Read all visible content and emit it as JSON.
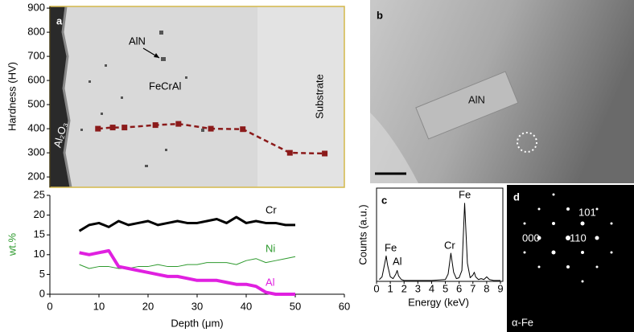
{
  "chart_data": [
    {
      "type": "line",
      "ylabel": "Hardness (HV)",
      "xlim": [
        0,
        60
      ],
      "ylim": [
        157,
        907
      ],
      "yticks": [
        200,
        300,
        400,
        500,
        600,
        700,
        800,
        900
      ],
      "annotations": [
        "a",
        "AlN",
        "FeCrAl",
        "Substrate",
        "Al₂O₃"
      ],
      "series": [
        {
          "color": "#8b1a1a",
          "marker": "square",
          "dashed": true,
          "x": [
            9.8,
            12.8,
            15.2,
            21.5,
            26.2,
            32.8,
            39.3,
            48.9,
            56
          ],
          "values": [
            400,
            405,
            405,
            415,
            420,
            400,
            398,
            300,
            297
          ]
        }
      ]
    },
    {
      "type": "line",
      "xlabel": "Depth (μm)",
      "ylabel": "wt.%",
      "xlim": [
        0,
        60
      ],
      "ylim": [
        0,
        25
      ],
      "xticks": [
        0,
        10,
        20,
        30,
        40,
        50,
        60
      ],
      "yticks": [
        0,
        5,
        10,
        15,
        20,
        25
      ],
      "x": [
        6,
        8,
        10,
        12,
        14,
        16,
        18,
        20,
        22,
        24,
        26,
        28,
        30,
        32,
        34,
        36,
        38,
        40,
        42,
        44,
        46,
        48,
        50
      ],
      "series": [
        {
          "name": "Cr",
          "color": "#000000",
          "width": 3,
          "values": [
            16,
            17.5,
            18,
            17,
            18.5,
            17.5,
            18,
            18.5,
            17.5,
            18,
            18.5,
            18,
            18,
            18.5,
            19,
            18,
            19.5,
            18,
            18.5,
            18,
            18,
            17.5,
            17.5
          ]
        },
        {
          "name": "Ni",
          "color": "#2e9a2e",
          "width": 1,
          "values": [
            7.5,
            6.5,
            7,
            7,
            6.5,
            6.5,
            7,
            7,
            7.5,
            7,
            7,
            7.5,
            7.5,
            8,
            8,
            8,
            7.5,
            8.5,
            9,
            8,
            8.5,
            9,
            9.5
          ]
        },
        {
          "name": "Al",
          "color": "#e020e0",
          "width": 4,
          "values": [
            10.5,
            10,
            10.5,
            11,
            7,
            6.5,
            6,
            5.5,
            5,
            4.5,
            4.5,
            4,
            3.5,
            3.5,
            3.5,
            3,
            2.5,
            2.5,
            2,
            0.5,
            0,
            0,
            0
          ]
        }
      ]
    },
    {
      "type": "line",
      "label": "c",
      "xlabel": "Energy (keV)",
      "ylabel": "Counts (a.u.)",
      "xlim": [
        0,
        9
      ],
      "ylim": [
        0,
        100
      ],
      "xticks": [
        0,
        1,
        2,
        3,
        4,
        5,
        6,
        7,
        8,
        9
      ],
      "peak_labels": [
        "Fe",
        "Al",
        "Cr",
        "Fe"
      ],
      "series": [
        {
          "color": "#000000",
          "width": 1,
          "x": [
            0.2,
            0.4,
            0.6,
            0.7,
            0.8,
            1.0,
            1.2,
            1.4,
            1.5,
            1.6,
            1.8,
            2.0,
            3.0,
            4.0,
            5.0,
            5.2,
            5.4,
            5.6,
            5.8,
            6.0,
            6.2,
            6.4,
            6.6,
            6.8,
            7.0,
            7.1,
            7.2,
            7.4,
            7.6,
            7.8,
            8.0,
            8.2,
            8.5,
            9.0
          ],
          "values": [
            2,
            5,
            20,
            28,
            18,
            5,
            3,
            8,
            12,
            6,
            2,
            1,
            1,
            1,
            2,
            8,
            31,
            10,
            3,
            4,
            12,
            86,
            20,
            4,
            7,
            10,
            5,
            2,
            3,
            2,
            5,
            2,
            1,
            1
          ]
        }
      ]
    }
  ],
  "images": [
    {
      "label": "b",
      "annotation": "AlN"
    },
    {
      "label": "d",
      "spots": [
        "101",
        "000",
        "110"
      ],
      "caption": "α-Fe"
    }
  ]
}
